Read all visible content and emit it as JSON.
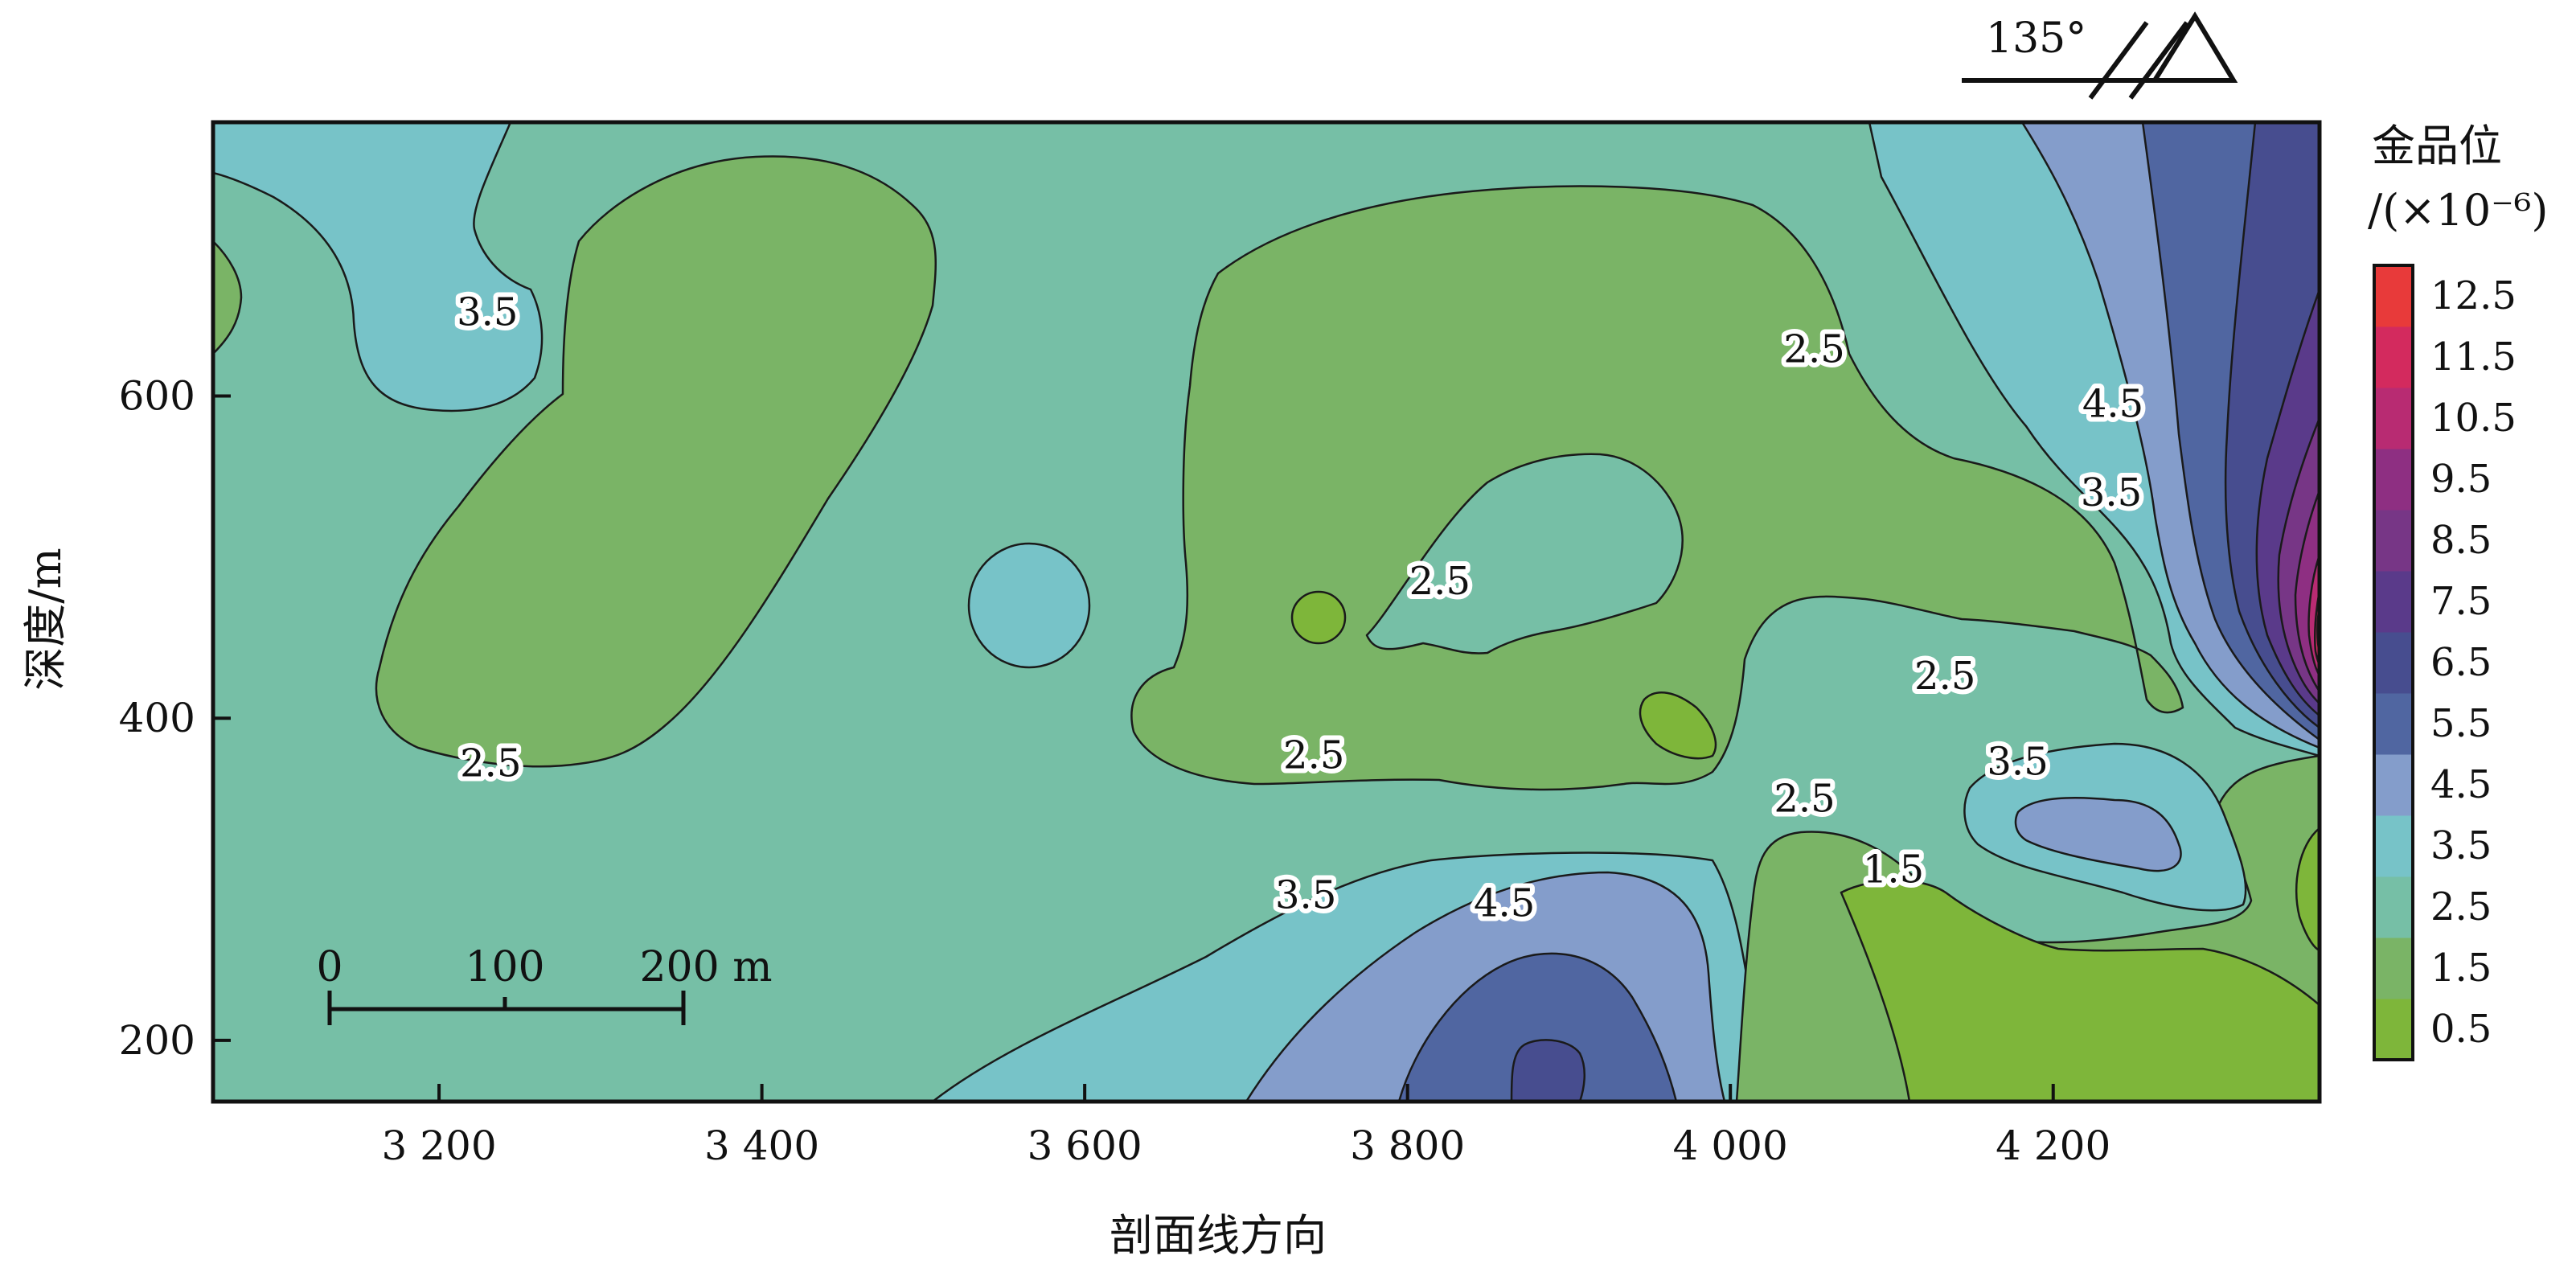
{
  "chart_data": {
    "type": "contour",
    "xlabel": "剖面线方向",
    "ylabel": "深度/m",
    "xlim": [
      3060,
      4365
    ],
    "ylim": [
      162,
      770
    ],
    "x_ticks": [
      3200,
      3400,
      3600,
      3800,
      4000,
      4200
    ],
    "x_tick_labels": [
      "3 200",
      "3 400",
      "3 600",
      "3 800",
      "4 000",
      "4 200"
    ],
    "y_ticks": [
      200,
      400,
      600
    ],
    "y_tick_labels": [
      "200",
      "400",
      "600"
    ],
    "colorbar": {
      "title": "金品位",
      "unit": "/(×10⁻⁶)",
      "levels": [
        0.5,
        1.5,
        2.5,
        3.5,
        4.5,
        5.5,
        6.5,
        7.5,
        8.5,
        9.5,
        10.5,
        11.5,
        12.5
      ],
      "level_labels": [
        "0.5",
        "1.5",
        "2.5",
        "3.5",
        "4.5",
        "5.5",
        "6.5",
        "7.5",
        "8.5",
        "9.5",
        "10.5",
        "11.5",
        "12.5"
      ],
      "colors": [
        "#7eb63a",
        "#7ab466",
        "#76bfa6",
        "#77c3c8",
        "#849dcb",
        "#5066a1",
        "#474d8f",
        "#5a3a8a",
        "#773686",
        "#8e2f82",
        "#b82b72",
        "#d32a5e",
        "#e83a3a"
      ]
    },
    "contour_labels": [
      {
        "text": "3.5",
        "x": 3230,
        "y": 652
      },
      {
        "text": "2.5",
        "x": 3232,
        "y": 372
      },
      {
        "text": "2.5",
        "x": 3742,
        "y": 377
      },
      {
        "text": "2.5",
        "x": 3820,
        "y": 485
      },
      {
        "text": "2.5",
        "x": 4052,
        "y": 629
      },
      {
        "text": "4.5",
        "x": 4237,
        "y": 595
      },
      {
        "text": "3.5",
        "x": 4236,
        "y": 540
      },
      {
        "text": "2.5",
        "x": 4133,
        "y": 426
      },
      {
        "text": "3.5",
        "x": 4178,
        "y": 373
      },
      {
        "text": "2.5",
        "x": 4046,
        "y": 350
      },
      {
        "text": "1.5",
        "x": 4101,
        "y": 306
      },
      {
        "text": "3.5",
        "x": 3737,
        "y": 290
      },
      {
        "text": "4.5",
        "x": 3860,
        "y": 285
      }
    ],
    "scale_bar": {
      "labels": [
        "0",
        "100",
        "200 m"
      ]
    },
    "orientation": {
      "angle": "135°"
    },
    "grid": false,
    "legend_position": "right"
  }
}
